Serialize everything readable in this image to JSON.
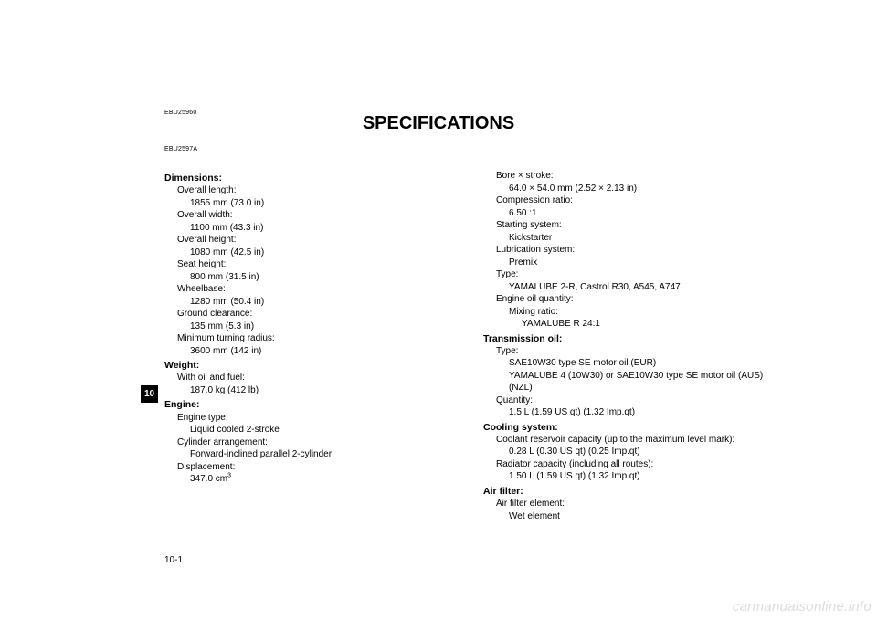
{
  "refs": {
    "r1": "EBU25960",
    "r2": "EBU2597A"
  },
  "title": "SPECIFICATIONS",
  "pagetab": "10",
  "pagenum": "10-1",
  "watermark": "carmanualsonline.info",
  "left": {
    "dimensions": {
      "head": "Dimensions:",
      "ol_l": "Overall length:",
      "ol_v": "1855 mm (73.0 in)",
      "ow_l": "Overall width:",
      "ow_v": "1100 mm (43.3 in)",
      "oh_l": "Overall height:",
      "oh_v": "1080 mm (42.5 in)",
      "sh_l": "Seat height:",
      "sh_v": "800 mm (31.5 in)",
      "wb_l": "Wheelbase:",
      "wb_v": "1280 mm (50.4 in)",
      "gc_l": "Ground clearance:",
      "gc_v": "135 mm (5.3 in)",
      "mtr_l": "Minimum turning radius:",
      "mtr_v": "3600 mm (142 in)"
    },
    "weight": {
      "head": "Weight:",
      "wof_l": "With oil and fuel:",
      "wof_v": "187.0 kg (412 lb)"
    },
    "engine": {
      "head": "Engine:",
      "et_l": "Engine type:",
      "et_v": "Liquid cooled 2-stroke",
      "ca_l": "Cylinder arrangement:",
      "ca_v": "Forward-inclined parallel 2-cylinder",
      "dp_l": "Displacement:",
      "dp_v": "347.0 cm",
      "dp_exp": "3"
    }
  },
  "right": {
    "engine_cont": {
      "bs_l": "Bore × stroke:",
      "bs_v": "64.0 × 54.0 mm (2.52 × 2.13 in)",
      "cr_l": "Compression ratio:",
      "cr_v": "6.50 :1",
      "ss_l": "Starting system:",
      "ss_v": "Kickstarter",
      "ls_l": "Lubrication system:",
      "ls_v": "Premix",
      "tp_l": "Type:",
      "tp_v": "YAMALUBE 2-R, Castrol R30, A545, A747",
      "eoq_l": "Engine oil quantity:",
      "mr_l": "Mixing ratio:",
      "mr_v": "YAMALUBE R 24:1"
    },
    "trans": {
      "head": "Transmission oil:",
      "tp_l": "Type:",
      "tp_v1": "SAE10W30 type SE motor oil (EUR)",
      "tp_v2": "YAMALUBE 4 (10W30) or SAE10W30 type SE motor oil (AUS)(NZL)",
      "qt_l": "Quantity:",
      "qt_v": "1.5 L (1.59 US qt) (1.32 Imp.qt)"
    },
    "cooling": {
      "head": "Cooling system:",
      "crc_l": "Coolant reservoir capacity (up to the maximum level mark):",
      "crc_v": "0.28 L (0.30 US qt) (0.25 Imp.qt)",
      "rc_l": "Radiator capacity (including all routes):",
      "rc_v": "1.50 L (1.59 US qt) (1.32 Imp.qt)"
    },
    "air": {
      "head": "Air filter:",
      "afe_l": "Air filter element:",
      "afe_v": "Wet element"
    }
  }
}
